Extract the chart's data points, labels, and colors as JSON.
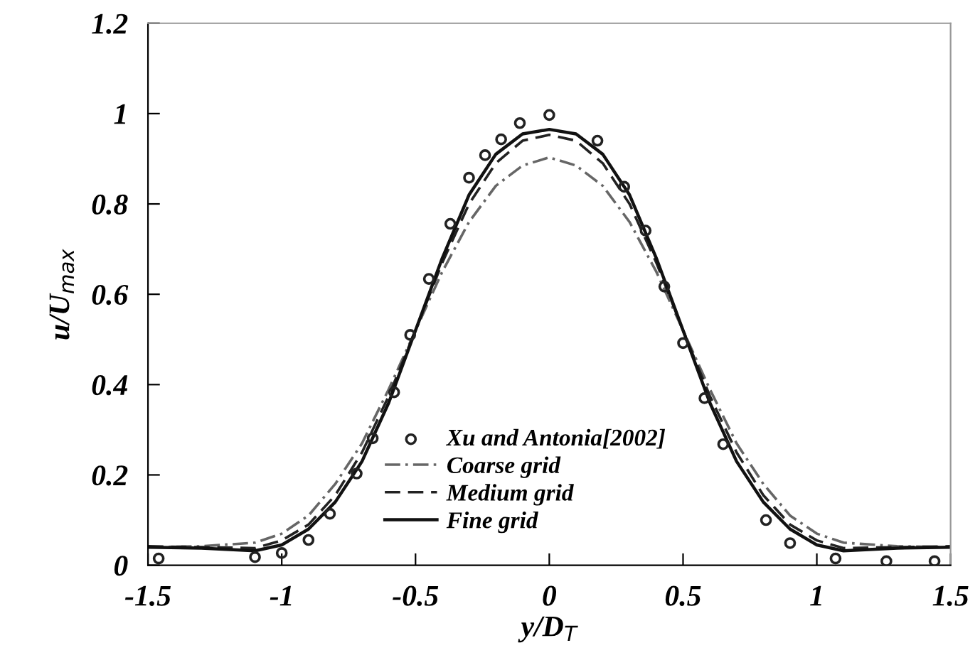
{
  "chart_data": {
    "type": "line",
    "xlabel": "y/D$_{T}$",
    "ylabel": "u/U$_{max}$",
    "xlim": [
      -1.5,
      1.5
    ],
    "xticks": [
      -1.5,
      -1,
      -0.5,
      0,
      0.5,
      1,
      1.5
    ],
    "ylim": [
      0,
      1.2
    ],
    "yticks": [
      0,
      0.2,
      0.4,
      0.6,
      0.8,
      1,
      1.2
    ],
    "grid": false,
    "legend": "bottom",
    "series": [
      {
        "name": "Xu and Antonia[2002]",
        "type": "scatter",
        "marker": "circle",
        "color": "#222222",
        "x": [
          -1.46,
          -1.1,
          -1.0,
          -0.9,
          -0.82,
          -0.72,
          -0.66,
          -0.58,
          -0.52,
          -0.45,
          -0.37,
          -0.3,
          -0.24,
          -0.18,
          -0.11,
          0.0,
          0.18,
          0.28,
          0.36,
          0.43,
          0.5,
          0.58,
          0.65,
          0.81,
          0.9,
          1.07,
          1.26,
          1.44
        ],
        "values": [
          0.015,
          0.018,
          0.027,
          0.056,
          0.114,
          0.203,
          0.281,
          0.383,
          0.51,
          0.634,
          0.756,
          0.858,
          0.908,
          0.943,
          0.979,
          0.997,
          0.94,
          0.838,
          0.741,
          0.617,
          0.492,
          0.37,
          0.268,
          0.1,
          0.049,
          0.015,
          0.009,
          0.009
        ]
      },
      {
        "name": "Coarse grid",
        "line_style": "dashdot",
        "color": "#666666",
        "x": [
          -1.5,
          -1.3,
          -1.1,
          -1.0,
          -0.9,
          -0.8,
          -0.7,
          -0.6,
          -0.5,
          -0.4,
          -0.3,
          -0.2,
          -0.1,
          0,
          0.1,
          0.2,
          0.3,
          0.4,
          0.5,
          0.6,
          0.7,
          0.8,
          0.9,
          1.0,
          1.1,
          1.3,
          1.5
        ],
        "values": [
          0.04,
          0.042,
          0.05,
          0.07,
          0.11,
          0.18,
          0.27,
          0.39,
          0.52,
          0.65,
          0.76,
          0.84,
          0.885,
          0.903,
          0.885,
          0.84,
          0.76,
          0.65,
          0.52,
          0.39,
          0.27,
          0.18,
          0.11,
          0.07,
          0.05,
          0.042,
          0.04
        ]
      },
      {
        "name": "Medium grid",
        "line_style": "dashed",
        "color": "#222222",
        "x": [
          -1.5,
          -1.3,
          -1.1,
          -1.0,
          -0.9,
          -0.8,
          -0.7,
          -0.6,
          -0.5,
          -0.4,
          -0.3,
          -0.2,
          -0.1,
          0,
          0.1,
          0.2,
          0.3,
          0.4,
          0.5,
          0.6,
          0.7,
          0.8,
          0.9,
          1.0,
          1.1,
          1.3,
          1.5
        ],
        "values": [
          0.042,
          0.04,
          0.038,
          0.055,
          0.09,
          0.155,
          0.25,
          0.375,
          0.52,
          0.67,
          0.8,
          0.89,
          0.94,
          0.953,
          0.94,
          0.89,
          0.8,
          0.67,
          0.52,
          0.375,
          0.25,
          0.155,
          0.09,
          0.055,
          0.038,
          0.04,
          0.042
        ]
      },
      {
        "name": "Fine grid",
        "line_style": "solid",
        "color": "#111111",
        "x": [
          -1.5,
          -1.3,
          -1.1,
          -1.0,
          -0.9,
          -0.8,
          -0.7,
          -0.6,
          -0.5,
          -0.4,
          -0.3,
          -0.2,
          -0.1,
          0,
          0.1,
          0.2,
          0.3,
          0.4,
          0.5,
          0.6,
          0.7,
          0.8,
          0.9,
          1.0,
          1.1,
          1.3,
          1.5
        ],
        "values": [
          0.04,
          0.038,
          0.032,
          0.045,
          0.08,
          0.14,
          0.23,
          0.36,
          0.52,
          0.68,
          0.82,
          0.91,
          0.955,
          0.965,
          0.955,
          0.91,
          0.82,
          0.68,
          0.52,
          0.36,
          0.23,
          0.14,
          0.08,
          0.045,
          0.032,
          0.038,
          0.04
        ]
      }
    ]
  }
}
